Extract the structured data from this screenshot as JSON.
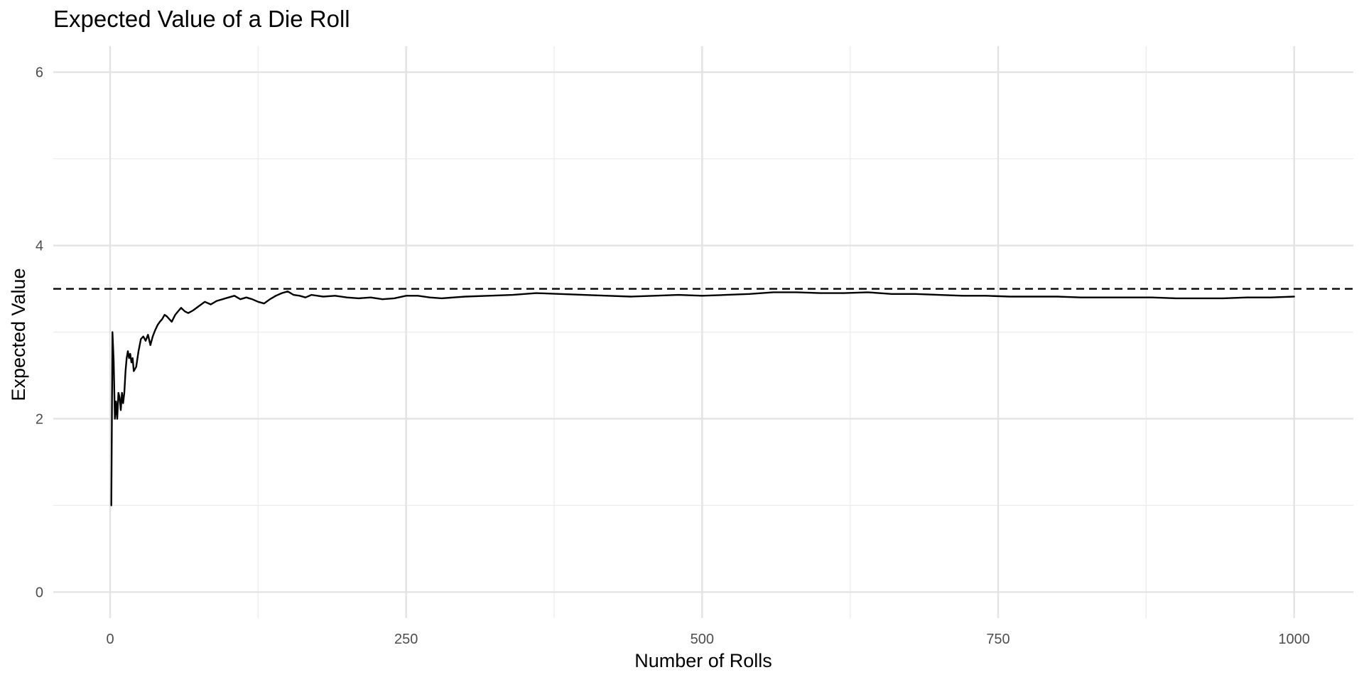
{
  "chart_data": {
    "type": "line",
    "title": "Expected Value of a Die Roll",
    "xlabel": "Number of Rolls",
    "ylabel": "Expected Value",
    "xlim": [
      -48,
      1050
    ],
    "ylim": [
      -0.3,
      6.3
    ],
    "x_ticks": [
      0,
      250,
      500,
      750,
      1000
    ],
    "y_ticks": [
      0,
      2,
      4,
      6
    ],
    "x_tick_labels": [
      "0",
      "250",
      "500",
      "750",
      "1000"
    ],
    "y_tick_labels": [
      "0",
      "2",
      "4",
      "6"
    ],
    "grid": true,
    "legend": "none",
    "reference_line": {
      "y": 3.5,
      "style": "dashed"
    },
    "series": [
      {
        "x": [
          1,
          2,
          3,
          4,
          5,
          6,
          7,
          8,
          9,
          10,
          11,
          12,
          13,
          14,
          15,
          16,
          17,
          18,
          19,
          20,
          22,
          24,
          26,
          28,
          30,
          32,
          34,
          36,
          38,
          40,
          42,
          44,
          46,
          48,
          50,
          52,
          55,
          58,
          60,
          63,
          66,
          70,
          75,
          80,
          85,
          90,
          95,
          100,
          105,
          110,
          115,
          120,
          125,
          130,
          135,
          140,
          145,
          150,
          155,
          160,
          165,
          170,
          175,
          180,
          190,
          200,
          210,
          220,
          230,
          240,
          250,
          260,
          270,
          280,
          290,
          300,
          320,
          340,
          360,
          380,
          400,
          420,
          440,
          460,
          480,
          500,
          520,
          540,
          560,
          580,
          600,
          620,
          640,
          660,
          680,
          700,
          720,
          740,
          760,
          780,
          800,
          820,
          840,
          860,
          880,
          900,
          920,
          940,
          960,
          980,
          1000
        ],
        "y": [
          1.0,
          3.0,
          2.67,
          2.0,
          2.2,
          2.0,
          2.3,
          2.25,
          2.1,
          2.3,
          2.18,
          2.3,
          2.55,
          2.7,
          2.78,
          2.7,
          2.75,
          2.65,
          2.7,
          2.55,
          2.6,
          2.78,
          2.92,
          2.95,
          2.9,
          2.97,
          2.85,
          2.95,
          3.02,
          3.08,
          3.12,
          3.15,
          3.2,
          3.18,
          3.15,
          3.12,
          3.2,
          3.25,
          3.28,
          3.24,
          3.22,
          3.25,
          3.3,
          3.35,
          3.32,
          3.36,
          3.38,
          3.4,
          3.42,
          3.38,
          3.4,
          3.38,
          3.35,
          3.33,
          3.38,
          3.42,
          3.45,
          3.47,
          3.43,
          3.42,
          3.4,
          3.43,
          3.42,
          3.41,
          3.42,
          3.4,
          3.39,
          3.4,
          3.38,
          3.39,
          3.42,
          3.42,
          3.4,
          3.39,
          3.4,
          3.41,
          3.42,
          3.43,
          3.45,
          3.44,
          3.43,
          3.42,
          3.41,
          3.42,
          3.43,
          3.42,
          3.43,
          3.44,
          3.46,
          3.46,
          3.45,
          3.45,
          3.46,
          3.44,
          3.44,
          3.43,
          3.42,
          3.42,
          3.41,
          3.41,
          3.41,
          3.4,
          3.4,
          3.4,
          3.4,
          3.39,
          3.39,
          3.39,
          3.4,
          3.4,
          3.41
        ]
      }
    ]
  }
}
